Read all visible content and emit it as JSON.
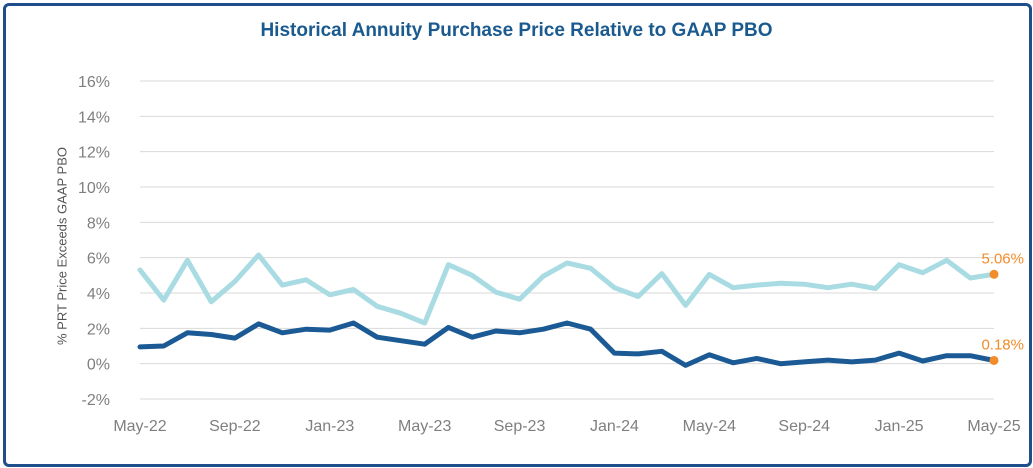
{
  "chart_data": {
    "type": "line",
    "title": "Historical Annuity Purchase Price Relative to GAAP PBO",
    "xlabel": "",
    "ylabel": "% PRT Price Exceeds GAAP PBO",
    "ylim": [
      -2,
      16
    ],
    "yticks": [
      -2,
      0,
      2,
      4,
      6,
      8,
      10,
      12,
      14,
      16
    ],
    "ytick_labels": [
      "-2%",
      "0%",
      "2%",
      "4%",
      "6%",
      "8%",
      "10%",
      "12%",
      "14%",
      "16%"
    ],
    "x_tick_labels": [
      "May-22",
      "Sep-22",
      "Jan-23",
      "May-23",
      "Sep-23",
      "Jan-24",
      "May-24",
      "Sep-24",
      "Jan-25",
      "May-25"
    ],
    "grid": true,
    "legend": "none",
    "series": [
      {
        "name": "Upper series",
        "color": "#a9dbe3",
        "values": [
          5.3,
          3.6,
          5.85,
          3.5,
          4.65,
          6.15,
          4.45,
          4.75,
          3.9,
          4.2,
          3.25,
          2.85,
          2.3,
          5.6,
          5.0,
          4.05,
          3.65,
          4.95,
          5.7,
          5.4,
          4.3,
          3.8,
          5.1,
          3.3,
          5.05,
          4.3,
          4.45,
          4.55,
          4.5,
          4.3,
          4.5,
          4.25,
          5.6,
          5.15,
          5.85,
          4.85,
          5.06
        ]
      },
      {
        "name": "Lower series",
        "color": "#1b5a94",
        "values": [
          0.95,
          1.0,
          1.75,
          1.65,
          1.45,
          2.25,
          1.75,
          1.95,
          1.9,
          2.3,
          1.5,
          1.3,
          1.1,
          2.05,
          1.5,
          1.85,
          1.75,
          1.95,
          2.3,
          1.95,
          0.6,
          0.55,
          0.7,
          -0.1,
          0.5,
          0.05,
          0.3,
          0.0,
          0.1,
          0.2,
          0.1,
          0.2,
          0.6,
          0.15,
          0.45,
          0.45,
          0.18
        ]
      }
    ],
    "data_labels": [
      {
        "series": 0,
        "index": 36,
        "text": "5.06%",
        "color": "#f28c28"
      },
      {
        "series": 1,
        "index": 36,
        "text": "0.18%",
        "color": "#f28c28"
      }
    ]
  }
}
